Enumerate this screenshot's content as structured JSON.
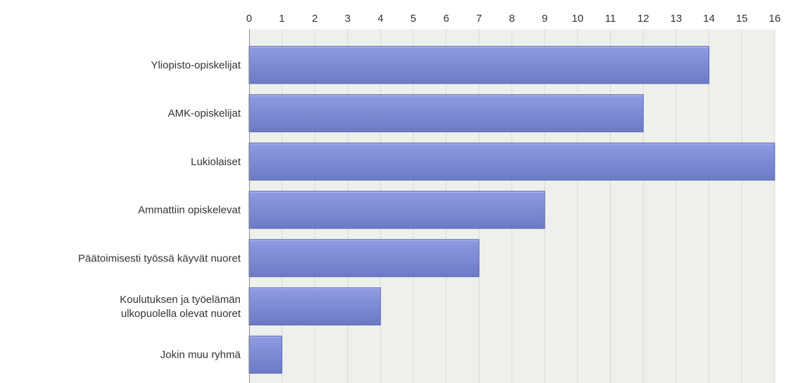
{
  "chart_data": {
    "type": "bar",
    "orientation": "horizontal",
    "categories": [
      [
        "Yliopisto-opiskelijat"
      ],
      [
        "AMK-opiskelijat"
      ],
      [
        "Lukiolaiset"
      ],
      [
        "Ammattiin opiskelevat"
      ],
      [
        "Päätoimisesti työssä käyvät nuoret"
      ],
      [
        "Koulutuksen ja työelämän",
        "ulkopuolella olevat nuoret"
      ],
      [
        "Jokin muu ryhmä"
      ]
    ],
    "values": [
      14,
      12,
      16,
      9,
      7,
      4,
      1
    ],
    "xlim": [
      0,
      16
    ],
    "xticks": [
      "0",
      "1",
      "2",
      "3",
      "4",
      "5",
      "6",
      "7",
      "8",
      "9",
      "10",
      "11",
      "12",
      "13",
      "14",
      "15",
      "16"
    ],
    "axis_position": "top",
    "grid": true,
    "title": "",
    "xlabel": "",
    "ylabel": "",
    "colors": {
      "bar_top": "#8f9be3",
      "bar_bottom": "#6c79c5",
      "bar_stroke": "#5e6ab0",
      "plot_bg": "#eef0ec",
      "grid": "#d7dad3",
      "axis": "#8a8a8a"
    }
  }
}
